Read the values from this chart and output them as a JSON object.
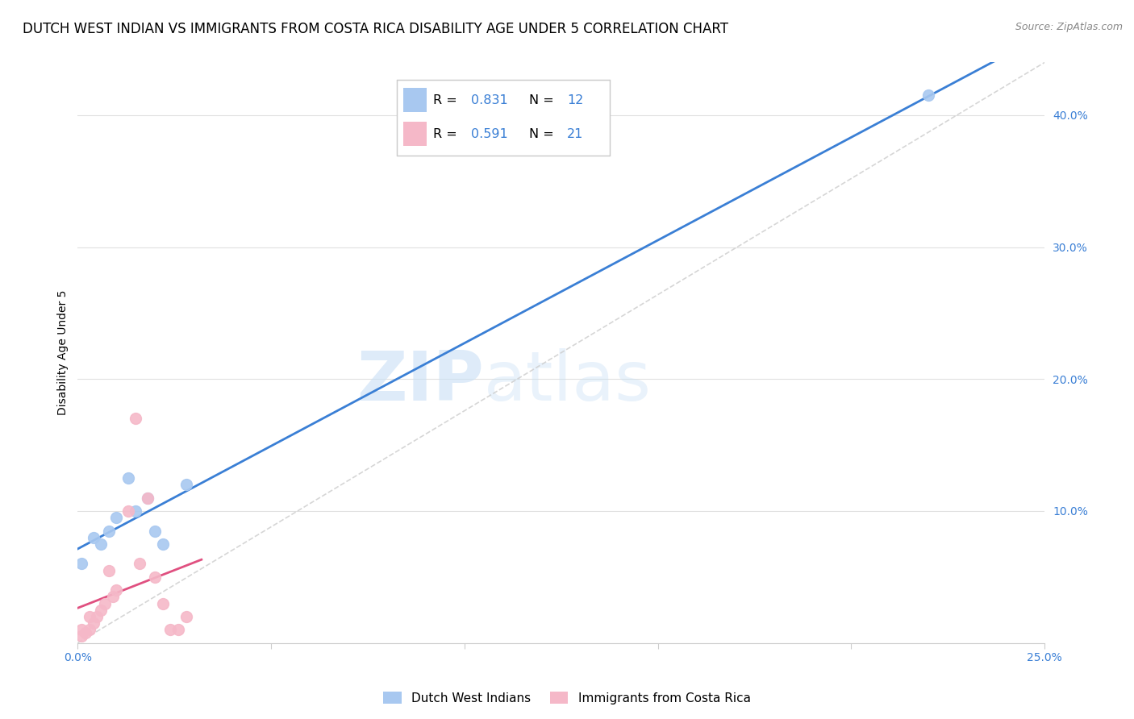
{
  "title": "DUTCH WEST INDIAN VS IMMIGRANTS FROM COSTA RICA DISABILITY AGE UNDER 5 CORRELATION CHART",
  "source": "Source: ZipAtlas.com",
  "ylabel": "Disability Age Under 5",
  "xlim": [
    0.0,
    0.25
  ],
  "ylim": [
    0.0,
    0.44
  ],
  "blue_color": "#a8c8f0",
  "pink_color": "#f5b8c8",
  "blue_line_color": "#3a7fd5",
  "pink_line_color": "#e05080",
  "diag_line_color": "#cccccc",
  "R_blue": 0.831,
  "N_blue": 12,
  "R_pink": 0.591,
  "N_pink": 21,
  "legend_label_blue": "Dutch West Indians",
  "legend_label_pink": "Immigrants from Costa Rica",
  "blue_x": [
    0.001,
    0.004,
    0.006,
    0.008,
    0.01,
    0.013,
    0.015,
    0.018,
    0.02,
    0.022,
    0.028,
    0.22
  ],
  "blue_y": [
    0.06,
    0.08,
    0.075,
    0.085,
    0.095,
    0.125,
    0.1,
    0.11,
    0.085,
    0.075,
    0.12,
    0.415
  ],
  "pink_x": [
    0.001,
    0.001,
    0.002,
    0.003,
    0.003,
    0.004,
    0.005,
    0.006,
    0.007,
    0.008,
    0.009,
    0.01,
    0.013,
    0.015,
    0.016,
    0.018,
    0.02,
    0.022,
    0.024,
    0.026,
    0.028
  ],
  "pink_y": [
    0.005,
    0.01,
    0.008,
    0.01,
    0.02,
    0.015,
    0.02,
    0.025,
    0.03,
    0.055,
    0.035,
    0.04,
    0.1,
    0.17,
    0.06,
    0.11,
    0.05,
    0.03,
    0.01,
    0.01,
    0.02
  ],
  "watermark_left": "ZIP",
  "watermark_right": "atlas",
  "title_fontsize": 12,
  "axis_label_fontsize": 10,
  "tick_fontsize": 10,
  "legend_r_color": "#3a7fd5",
  "legend_n_color": "#3a7fd5"
}
